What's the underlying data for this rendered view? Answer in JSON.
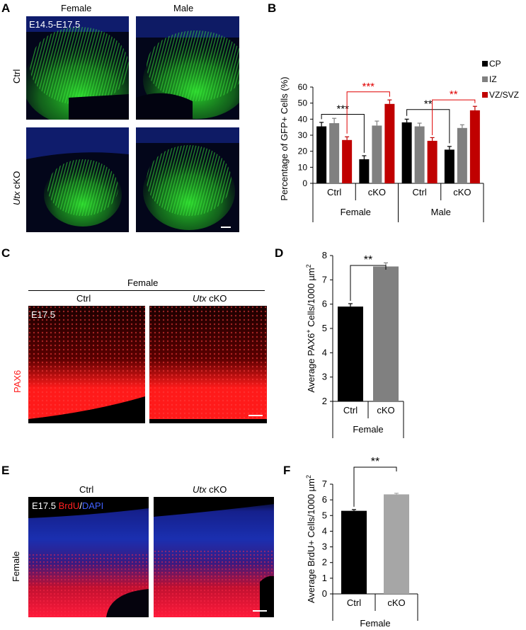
{
  "panels": {
    "A": {
      "letter": "A",
      "col_female": "Female",
      "col_male": "Male",
      "row_ctrl": "Ctrl",
      "row_cko_gene": "Utx",
      "row_cko_suffix": " cKO",
      "stamp": "E14.5-E17.5"
    },
    "B": {
      "letter": "B"
    },
    "C": {
      "letter": "C",
      "group": "Female",
      "col_ctrl": "Ctrl",
      "col_cko_gene": "Utx",
      "col_cko_suffix": " cKO",
      "stamp": "E17.5",
      "marker": "PAX6"
    },
    "D": {
      "letter": "D"
    },
    "E": {
      "letter": "E",
      "col_ctrl": "Ctrl",
      "col_cko_gene": "Utx",
      "col_cko_suffix": " cKO",
      "row": "Female",
      "stamp_age": "E17.5",
      "stamp_brdu": "BrdU",
      "stamp_sep": "/",
      "stamp_dapi": "DAPI"
    },
    "F": {
      "letter": "F"
    }
  },
  "colors": {
    "gfp": "#2ee02e",
    "dapi": "#1a2fb0",
    "pax6": "#ff1a1a",
    "cp": "#000000",
    "iz": "#808080",
    "vz_svz": "#c00000",
    "cko_gray": "#808080",
    "sig_red": "#e00000"
  },
  "chart_data": [
    {
      "id": "B",
      "type": "bar",
      "ylabel": "Percentage of GFP+ Cells (%)",
      "ylim": [
        0,
        60
      ],
      "yticks": [
        "0",
        "10",
        "20",
        "30",
        "40",
        "50",
        "60"
      ],
      "groups": [
        "Ctrl",
        "cKO",
        "Ctrl",
        "cKO"
      ],
      "supergroups": [
        "Female",
        "Male"
      ],
      "legend_position": "top-right",
      "series": [
        {
          "name": "CP",
          "values": [
            35.5,
            15,
            38,
            21
          ],
          "errors": [
            2.5,
            2.2,
            2,
            2
          ]
        },
        {
          "name": "IZ",
          "values": [
            37.5,
            36,
            35.5,
            34.5
          ],
          "errors": [
            3,
            2.8,
            2,
            2
          ]
        },
        {
          "name": "VZ/SVZ",
          "values": [
            27,
            49.5,
            26.5,
            45.5
          ],
          "errors": [
            2,
            2.5,
            2,
            2.5
          ]
        }
      ],
      "sig_labels": [
        "***",
        "***",
        "**",
        "**"
      ]
    },
    {
      "id": "D",
      "type": "bar",
      "ylabel_pre": "Average PAX6",
      "ylabel_sup": "+",
      "ylabel_post": " Cells/1000 µm",
      "ylabel_sup2": "2",
      "ylim": [
        2,
        8
      ],
      "yticks": [
        "2",
        "3",
        "4",
        "5",
        "6",
        "7",
        "8"
      ],
      "categories": [
        "Ctrl",
        "cKO"
      ],
      "values": [
        5.9,
        7.55
      ],
      "errors": [
        0.12,
        0.15
      ],
      "group": "Female",
      "sig_label": "**"
    },
    {
      "id": "F",
      "type": "bar",
      "ylabel_pre": "Average BrdU+ Cells/1000 µm",
      "ylabel_sup": "2",
      "ylim": [
        0,
        7
      ],
      "yticks": [
        "0",
        "1",
        "2",
        "3",
        "4",
        "5",
        "6",
        "7"
      ],
      "categories": [
        "Ctrl",
        "cKO"
      ],
      "values": [
        5.3,
        6.35
      ],
      "errors": [
        0.08,
        0.07
      ],
      "group": "Female",
      "sig_label": "**"
    }
  ]
}
